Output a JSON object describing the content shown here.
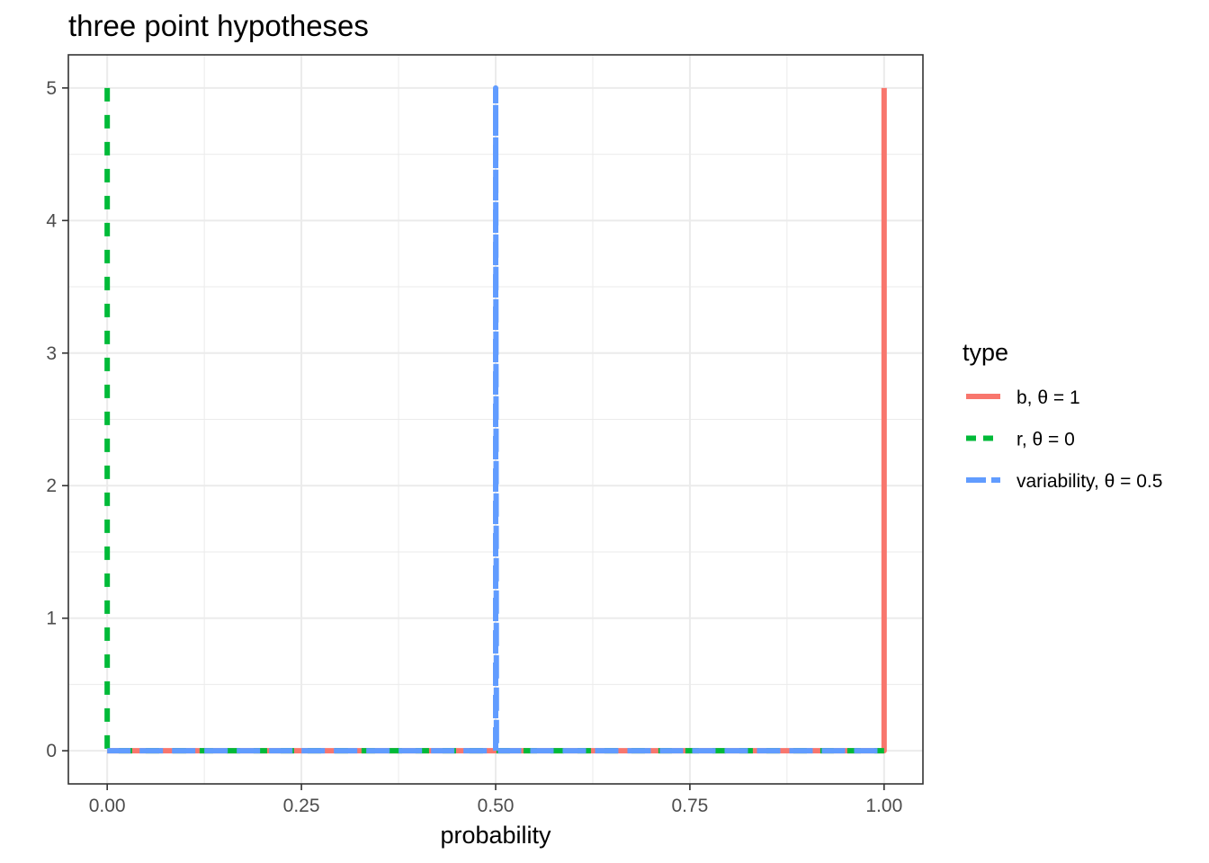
{
  "chart_data": {
    "type": "line",
    "title": "three point hypotheses",
    "xlabel": "probability",
    "ylabel": "",
    "xlim": [
      -0.05,
      1.05
    ],
    "ylim": [
      -0.25,
      5.25
    ],
    "x_ticks": [
      "0.00",
      "0.25",
      "0.50",
      "0.75",
      "1.00"
    ],
    "x_tick_values": [
      0,
      0.25,
      0.5,
      0.75,
      1.0
    ],
    "y_ticks": [
      "0",
      "1",
      "2",
      "3",
      "4",
      "5"
    ],
    "y_tick_values": [
      0,
      1,
      2,
      3,
      4,
      5
    ],
    "grid": true,
    "legend": {
      "title": "type",
      "position": "right"
    },
    "series": [
      {
        "name": "b, θ = 1",
        "color": "#F8766D",
        "linetype": "solid",
        "x": [
          0,
          0.999,
          1.0,
          1.0
        ],
        "y": [
          0,
          0,
          0,
          5
        ]
      },
      {
        "name": "r, θ = 0",
        "color": "#00BA38",
        "linetype": "dashed",
        "x": [
          0,
          0,
          0.001,
          1.0
        ],
        "y": [
          5,
          0,
          0,
          0
        ]
      },
      {
        "name": "variability, θ = 0.5",
        "color": "#619CFF",
        "linetype": "longdash",
        "x": [
          0,
          0.499,
          0.5,
          0.5,
          0.501,
          1.0
        ],
        "y": [
          0,
          0,
          0,
          5,
          0,
          0
        ]
      }
    ]
  }
}
